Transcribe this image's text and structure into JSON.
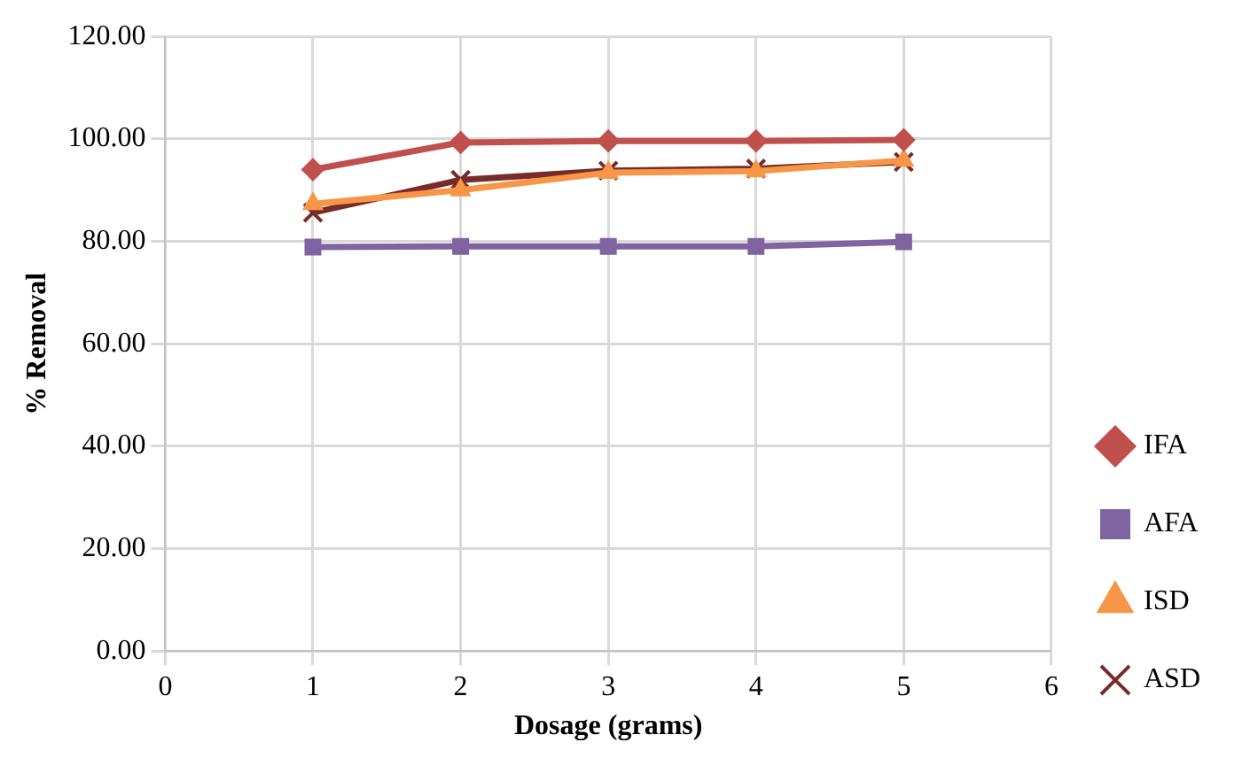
{
  "chart_data": {
    "type": "line",
    "xlabel": "Dosage (grams)",
    "ylabel": "% Removal",
    "x": [
      1,
      2,
      3,
      4,
      5
    ],
    "series": [
      {
        "name": "IFA",
        "color": "#c0504d",
        "marker": "diamond",
        "values": [
          94.0,
          99.3,
          99.6,
          99.6,
          99.8
        ]
      },
      {
        "name": "AFA",
        "color": "#8064a2",
        "marker": "square",
        "values": [
          78.9,
          79.0,
          79.0,
          79.0,
          79.9
        ]
      },
      {
        "name": "ISD",
        "color": "#f79646",
        "marker": "triangle",
        "values": [
          87.3,
          90.0,
          93.4,
          93.7,
          95.8
        ]
      },
      {
        "name": "ASD",
        "color": "#772c2a",
        "marker": "cross",
        "values": [
          85.6,
          92.0,
          93.8,
          94.2,
          95.5
        ]
      }
    ],
    "xlim": [
      0,
      6
    ],
    "xticks": [
      0,
      1,
      2,
      3,
      4,
      5,
      6
    ],
    "ylim": [
      0,
      120
    ],
    "yticks": [
      {
        "value": 0,
        "label": "0.00"
      },
      {
        "value": 20,
        "label": "20.00"
      },
      {
        "value": 40,
        "label": "40.00"
      },
      {
        "value": 60,
        "label": "60.00"
      },
      {
        "value": 80,
        "label": "80.00"
      },
      {
        "value": 100,
        "label": "100.00"
      },
      {
        "value": 120,
        "label": "120.00"
      }
    ],
    "grid": true,
    "legend": "right",
    "line_style": "solid"
  }
}
